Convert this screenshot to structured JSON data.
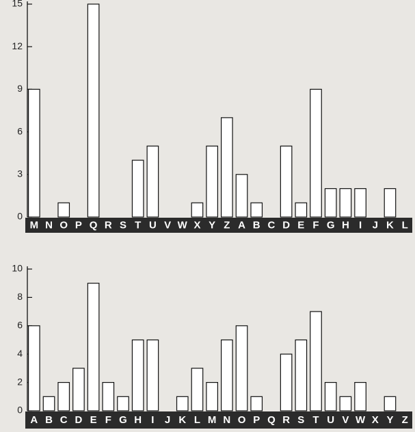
{
  "chart_data": [
    {
      "type": "bar",
      "categories": [
        "M",
        "N",
        "O",
        "P",
        "Q",
        "R",
        "S",
        "T",
        "U",
        "V",
        "W",
        "X",
        "Y",
        "Z",
        "A",
        "B",
        "C",
        "D",
        "E",
        "F",
        "G",
        "H",
        "I",
        "J",
        "K",
        "L"
      ],
      "values": [
        9,
        0,
        1,
        0,
        15,
        0,
        0,
        4,
        5,
        0,
        0,
        1,
        5,
        7,
        3,
        1,
        0,
        5,
        1,
        9,
        2,
        2,
        2,
        0,
        2,
        0
      ],
      "color": "#ffffff",
      "ylim": [
        0,
        15
      ],
      "yticks": [
        0,
        3,
        6,
        9,
        12,
        15
      ]
    },
    {
      "type": "bar",
      "categories": [
        "A",
        "B",
        "C",
        "D",
        "E",
        "F",
        "G",
        "H",
        "I",
        "J",
        "K",
        "L",
        "M",
        "N",
        "O",
        "P",
        "Q",
        "R",
        "S",
        "T",
        "U",
        "V",
        "W",
        "X",
        "Y",
        "Z"
      ],
      "values": [
        6,
        1,
        2,
        3,
        9,
        2,
        1,
        5,
        5,
        0,
        1,
        3,
        2,
        5,
        6,
        1,
        0,
        4,
        5,
        7,
        2,
        1,
        2,
        0,
        1,
        0
      ],
      "color": "#ffffff",
      "ylim": [
        0,
        10
      ],
      "yticks": [
        0,
        2,
        4,
        6,
        8,
        10
      ]
    }
  ]
}
